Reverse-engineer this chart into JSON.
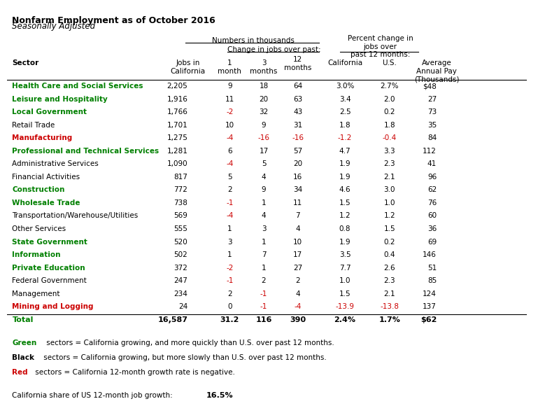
{
  "title1": "Nonfarm Employment as of October 2016",
  "title2": "Seasonally Adjusted",
  "col_headers": {
    "numbers_group": "Numbers in thousands",
    "change_group": "Change in jobs over past:",
    "percent_group": "Percent change in\njobs over\npast 12 months:",
    "col1": "Jobs in\nCalifornia",
    "col2": "1\nmonth",
    "col3": "3\nmonths",
    "col4": "12\nmonths",
    "col5": "California",
    "col6": "U.S.",
    "col7": "Average\nAnnual Pay\n(Thousands)"
  },
  "sector_label": "Sector",
  "rows": [
    {
      "name": "Health Care and Social Services",
      "color": "green",
      "jobs": "2,205",
      "m1": "9",
      "m3": "18",
      "m12": "64",
      "pct_ca": "3.0%",
      "pct_us": "2.7%",
      "pay": "$48",
      "m1_red": false,
      "m3_red": false,
      "m12_red": false,
      "pct_ca_red": false,
      "pct_us_red": false
    },
    {
      "name": "Leisure and Hospitality",
      "color": "green",
      "jobs": "1,916",
      "m1": "11",
      "m3": "20",
      "m12": "63",
      "pct_ca": "3.4",
      "pct_us": "2.0",
      "pay": "27",
      "m1_red": false,
      "m3_red": false,
      "m12_red": false,
      "pct_ca_red": false,
      "pct_us_red": false
    },
    {
      "name": "Local Government",
      "color": "green",
      "jobs": "1,766",
      "m1": "-2",
      "m3": "32",
      "m12": "43",
      "pct_ca": "2.5",
      "pct_us": "0.2",
      "pay": "73",
      "m1_red": true,
      "m3_red": false,
      "m12_red": false,
      "pct_ca_red": false,
      "pct_us_red": false
    },
    {
      "name": "Retail Trade",
      "color": "black",
      "jobs": "1,701",
      "m1": "10",
      "m3": "9",
      "m12": "31",
      "pct_ca": "1.8",
      "pct_us": "1.8",
      "pay": "35",
      "m1_red": false,
      "m3_red": false,
      "m12_red": false,
      "pct_ca_red": false,
      "pct_us_red": false
    },
    {
      "name": "Manufacturing",
      "color": "red",
      "jobs": "1,275",
      "m1": "-4",
      "m3": "-16",
      "m12": "-16",
      "pct_ca": "-1.2",
      "pct_us": "-0.4",
      "pay": "84",
      "m1_red": true,
      "m3_red": true,
      "m12_red": true,
      "pct_ca_red": true,
      "pct_us_red": true
    },
    {
      "name": "Professional and Technical Services",
      "color": "green",
      "jobs": "1,281",
      "m1": "6",
      "m3": "17",
      "m12": "57",
      "pct_ca": "4.7",
      "pct_us": "3.3",
      "pay": "112",
      "m1_red": false,
      "m3_red": false,
      "m12_red": false,
      "pct_ca_red": false,
      "pct_us_red": false
    },
    {
      "name": "Administrative Services",
      "color": "black",
      "jobs": "1,090",
      "m1": "-4",
      "m3": "5",
      "m12": "20",
      "pct_ca": "1.9",
      "pct_us": "2.3",
      "pay": "41",
      "m1_red": true,
      "m3_red": false,
      "m12_red": false,
      "pct_ca_red": false,
      "pct_us_red": false
    },
    {
      "name": "Financial Activities",
      "color": "black",
      "jobs": "817",
      "m1": "5",
      "m3": "4",
      "m12": "16",
      "pct_ca": "1.9",
      "pct_us": "2.1",
      "pay": "96",
      "m1_red": false,
      "m3_red": false,
      "m12_red": false,
      "pct_ca_red": false,
      "pct_us_red": false
    },
    {
      "name": "Construction",
      "color": "green",
      "jobs": "772",
      "m1": "2",
      "m3": "9",
      "m12": "34",
      "pct_ca": "4.6",
      "pct_us": "3.0",
      "pay": "62",
      "m1_red": false,
      "m3_red": false,
      "m12_red": false,
      "pct_ca_red": false,
      "pct_us_red": false
    },
    {
      "name": "Wholesale Trade",
      "color": "green",
      "jobs": "738",
      "m1": "-1",
      "m3": "1",
      "m12": "11",
      "pct_ca": "1.5",
      "pct_us": "1.0",
      "pay": "76",
      "m1_red": true,
      "m3_red": false,
      "m12_red": false,
      "pct_ca_red": false,
      "pct_us_red": false
    },
    {
      "name": "Transportation/Warehouse/Utilities",
      "color": "black",
      "jobs": "569",
      "m1": "-4",
      "m3": "4",
      "m12": "7",
      "pct_ca": "1.2",
      "pct_us": "1.2",
      "pay": "60",
      "m1_red": true,
      "m3_red": false,
      "m12_red": false,
      "pct_ca_red": false,
      "pct_us_red": false
    },
    {
      "name": "Other Services",
      "color": "black",
      "jobs": "555",
      "m1": "1",
      "m3": "3",
      "m12": "4",
      "pct_ca": "0.8",
      "pct_us": "1.5",
      "pay": "36",
      "m1_red": false,
      "m3_red": false,
      "m12_red": false,
      "pct_ca_red": false,
      "pct_us_red": false
    },
    {
      "name": "State Government",
      "color": "green",
      "jobs": "520",
      "m1": "3",
      "m3": "1",
      "m12": "10",
      "pct_ca": "1.9",
      "pct_us": "0.2",
      "pay": "69",
      "m1_red": false,
      "m3_red": false,
      "m12_red": false,
      "pct_ca_red": false,
      "pct_us_red": false
    },
    {
      "name": "Information",
      "color": "green",
      "jobs": "502",
      "m1": "1",
      "m3": "7",
      "m12": "17",
      "pct_ca": "3.5",
      "pct_us": "0.4",
      "pay": "146",
      "m1_red": false,
      "m3_red": false,
      "m12_red": false,
      "pct_ca_red": false,
      "pct_us_red": false
    },
    {
      "name": "Private Education",
      "color": "green",
      "jobs": "372",
      "m1": "-2",
      "m3": "1",
      "m12": "27",
      "pct_ca": "7.7",
      "pct_us": "2.6",
      "pay": "51",
      "m1_red": true,
      "m3_red": false,
      "m12_red": false,
      "pct_ca_red": false,
      "pct_us_red": false
    },
    {
      "name": "Federal Government",
      "color": "black",
      "jobs": "247",
      "m1": "-1",
      "m3": "2",
      "m12": "2",
      "pct_ca": "1.0",
      "pct_us": "2.3",
      "pay": "85",
      "m1_red": true,
      "m3_red": false,
      "m12_red": false,
      "pct_ca_red": false,
      "pct_us_red": false
    },
    {
      "name": "Management",
      "color": "black",
      "jobs": "234",
      "m1": "2",
      "m3": "-1",
      "m12": "4",
      "pct_ca": "1.5",
      "pct_us": "2.1",
      "pay": "124",
      "m1_red": false,
      "m3_red": true,
      "m12_red": false,
      "pct_ca_red": false,
      "pct_us_red": false
    },
    {
      "name": "Mining and Logging",
      "color": "red",
      "jobs": "24",
      "m1": "0",
      "m3": "-1",
      "m12": "-4",
      "pct_ca": "-13.9",
      "pct_us": "-13.8",
      "pay": "137",
      "m1_red": false,
      "m3_red": true,
      "m12_red": true,
      "pct_ca_red": true,
      "pct_us_red": true
    }
  ],
  "total_row": {
    "name": "Total",
    "jobs": "16,587",
    "m1": "31.2",
    "m3": "116",
    "m12": "390",
    "pct_ca": "2.4%",
    "pct_us": "1.7%",
    "pay": "$62"
  },
  "footnotes": [
    {
      "parts": [
        {
          "text": "Green",
          "color": "green",
          "bold": true
        },
        {
          "text": " sectors = California growing, and more quickly than U.S. over past 12 months.",
          "color": "black",
          "bold": false
        }
      ]
    },
    {
      "parts": [
        {
          "text": "Black",
          "color": "black",
          "bold": true
        },
        {
          "text": " sectors = California growing, but more slowly than U.S. over past 12 months.",
          "color": "black",
          "bold": false
        }
      ]
    },
    {
      "parts": [
        {
          "text": "Red",
          "color": "red",
          "bold": true
        },
        {
          "text": " sectors = California 12-month growth rate is negative.",
          "color": "black",
          "bold": false
        }
      ]
    }
  ],
  "ca_share_label": "California share of US 12-month job growth:",
  "ca_share_value": "16.5%",
  "green": "#008000",
  "red": "#CC0000",
  "black": "#000000"
}
